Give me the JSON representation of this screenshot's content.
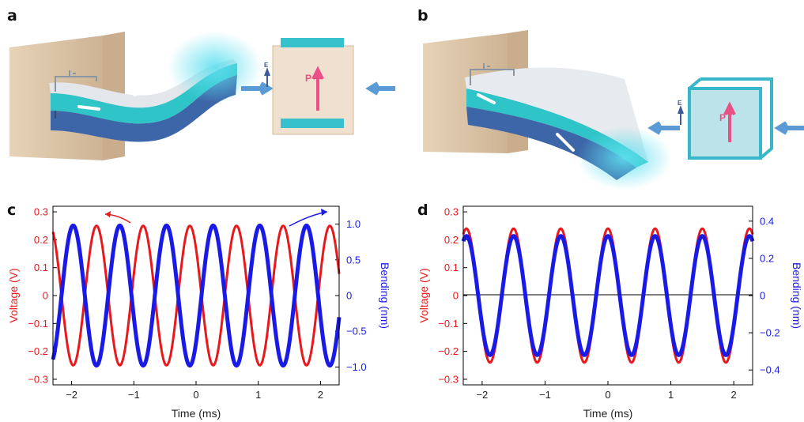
{
  "panels": {
    "a": "a",
    "b": "b",
    "c": "c",
    "d": "d"
  },
  "illustration": {
    "field_label": "E",
    "polarization_label": "P",
    "colors": {
      "wall": "#d8c3a5",
      "beam_top": "#e2e6ea",
      "beam_mid": "#2fc4c7",
      "beam_bottom": "#3d66a8",
      "arrow": "#5b9bd5",
      "polar_arrow": "#ea4f86",
      "cube_a": "#e9d6bf",
      "cube_b": "#8fd1dc"
    }
  },
  "chart_data": [
    {
      "type": "line",
      "panel": "c",
      "xlabel": "Time (ms)",
      "ylabel_left": "Voltage (V)",
      "ylabel_right": "Bending (nm)",
      "xlim": [
        -2.3,
        2.3
      ],
      "ylim_left": [
        -0.32,
        0.32
      ],
      "ylim_right": [
        -1.25,
        1.25
      ],
      "x_ticks": [
        -2,
        -1,
        0,
        1,
        2
      ],
      "x_tick_labels": [
        "−2",
        "−1",
        "0",
        "1",
        "2"
      ],
      "y_ticks_left": [
        0.3,
        0.2,
        0.1,
        0,
        -0.1,
        -0.2,
        -0.3
      ],
      "y_tick_labels_left": [
        "0.3",
        "0.2",
        "0.1",
        "0",
        "−0.1",
        "−0.2",
        "−0.3"
      ],
      "y_ticks_right": [
        1.0,
        0.5,
        0,
        -0.5,
        -1.0
      ],
      "y_tick_labels_right": [
        "1.0",
        "0.5",
        "0",
        "−0.5",
        "−1.0"
      ],
      "series": [
        {
          "axis": "left",
          "color": "#e8191c",
          "amplitude": 0.25,
          "period_ms": 0.75,
          "phase_ms": -0.1
        },
        {
          "axis": "right",
          "color": "#1a1ae6",
          "amplitude": 0.98,
          "period_ms": 0.75,
          "phase_ms": 0.275
        }
      ],
      "annotation_arrows": [
        {
          "color": "#e8191c",
          "points_to": "left"
        },
        {
          "color": "#1a1ae6",
          "points_to": "right"
        }
      ]
    },
    {
      "type": "line",
      "panel": "d",
      "xlabel": "Time (ms)",
      "ylabel_left": "Voltage (V)",
      "ylabel_right": "Bending (nm)",
      "xlim": [
        -2.3,
        2.3
      ],
      "ylim_left": [
        -0.32,
        0.32
      ],
      "ylim_right": [
        -0.48,
        0.48
      ],
      "x_ticks": [
        -2,
        -1,
        0,
        1,
        2
      ],
      "x_tick_labels": [
        "−2",
        "−1",
        "0",
        "1",
        "2"
      ],
      "y_ticks_left": [
        0.3,
        0.2,
        0.1,
        0,
        -0.1,
        -0.2,
        -0.3
      ],
      "y_tick_labels_left": [
        "0.3",
        "0.2",
        "0.1",
        "0",
        "−0.1",
        "−0.2",
        "−0.3"
      ],
      "y_ticks_right": [
        0.4,
        0.2,
        0,
        -0.2,
        -0.4
      ],
      "y_tick_labels_right": [
        "0.4",
        "0.2",
        "0",
        "−0.2",
        "−0.4"
      ],
      "zero_line": true,
      "series": [
        {
          "axis": "left",
          "color": "#e8191c",
          "amplitude": 0.24,
          "period_ms": 0.75,
          "phase_ms": 0.0
        },
        {
          "axis": "right",
          "color": "#1a1ae6",
          "amplitude": 0.32,
          "period_ms": 0.75,
          "phase_ms": 0.0
        }
      ]
    }
  ]
}
